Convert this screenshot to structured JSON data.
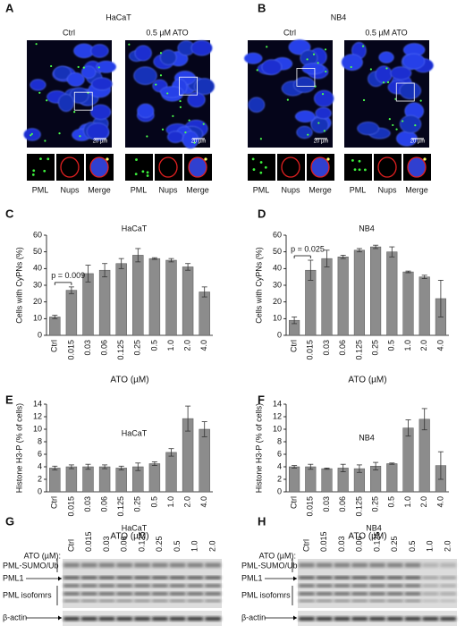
{
  "panels": [
    {
      "label": "A",
      "title": "HaCaT",
      "conditions": [
        "Ctrl",
        "0.5 µM ATO"
      ],
      "scale_bar": "20 µm",
      "insets": [
        "PML",
        "Nups",
        "Merge"
      ]
    },
    {
      "label": "B",
      "title": "NB4",
      "conditions": [
        "Ctrl",
        "0.5 µM ATO"
      ],
      "scale_bar": "20 µm",
      "insets": [
        "PML",
        "Nups",
        "Merge"
      ]
    }
  ],
  "chart_data": [
    {
      "type": "bar",
      "panel": "C",
      "title": "HaCaT",
      "ylabel": "Cells with CyPNs (%)",
      "xlabel": "ATO (µM)",
      "categories": [
        "Ctrl",
        "0.015",
        "0.03",
        "0.06",
        "0.125",
        "0.25",
        "0.5",
        "1.0",
        "2.0",
        "4.0"
      ],
      "values": [
        11,
        27,
        37,
        39,
        43,
        48,
        46,
        45,
        41,
        26
      ],
      "errors": [
        1,
        2,
        5,
        4,
        3,
        4,
        0.5,
        1,
        2,
        3
      ],
      "annotation": "p = 0.009",
      "color": "#8c8c8c",
      "ylim": [
        0,
        60
      ],
      "yticks": [
        0,
        10,
        20,
        30,
        40,
        50,
        60
      ]
    },
    {
      "type": "bar",
      "panel": "D",
      "title": "NB4",
      "ylabel": "Cells with CyPNs (%)",
      "xlabel": "ATO (µM)",
      "categories": [
        "Ctrl",
        "0.015",
        "0.03",
        "0.06",
        "0.125",
        "0.25",
        "0.5",
        "1.0",
        "2.0",
        "4.0"
      ],
      "values": [
        9,
        39,
        46,
        47,
        51,
        53,
        50,
        38,
        35,
        22
      ],
      "errors": [
        2,
        6,
        5,
        1,
        1,
        1,
        3,
        0.5,
        1,
        11
      ],
      "annotation": "p = 0.025",
      "color": "#8c8c8c",
      "ylim": [
        0,
        60
      ],
      "yticks": [
        0,
        10,
        20,
        30,
        40,
        50,
        60
      ]
    },
    {
      "type": "bar",
      "panel": "E",
      "title": "HaCaT",
      "ylabel": "Histone H3-P (% of cells)",
      "xlabel": "ATO (µM)",
      "categories": [
        "Ctrl",
        "0.015",
        "0.03",
        "0.06",
        "0.125",
        "0.25",
        "0.5",
        "1.0",
        "2.0",
        "4.0"
      ],
      "values": [
        3.8,
        4.0,
        4.0,
        4.0,
        3.8,
        4.0,
        4.5,
        6.3,
        11.7,
        10
      ],
      "errors": [
        0.3,
        0.3,
        0.4,
        0.3,
        0.3,
        0.6,
        0.3,
        0.6,
        2,
        1.2
      ],
      "color": "#8c8c8c",
      "ylim": [
        0,
        14
      ],
      "yticks": [
        0,
        2,
        4,
        6,
        8,
        10,
        12,
        14
      ]
    },
    {
      "type": "bar",
      "panel": "F",
      "title": "NB4",
      "ylabel": "Histone H3-P (% of cells)",
      "xlabel": "ATO (µM)",
      "categories": [
        "Ctrl",
        "0.015",
        "0.03",
        "0.06",
        "0.125",
        "0.25",
        "0.5",
        "1.0",
        "2.0",
        "4.0"
      ],
      "values": [
        4.0,
        4.0,
        3.7,
        3.8,
        3.7,
        4.1,
        4.5,
        10.2,
        11.6,
        4.2
      ],
      "errors": [
        0.2,
        0.4,
        0.1,
        0.6,
        0.6,
        0.6,
        0.1,
        1.3,
        1.7,
        2.2
      ],
      "color": "#8c8c8c",
      "ylim": [
        0,
        14
      ],
      "yticks": [
        0,
        2,
        4,
        6,
        8,
        10,
        12,
        14
      ]
    }
  ],
  "blots": [
    {
      "label": "G",
      "title": "HaCaT",
      "dose_label": "ATO (µM):",
      "doses": [
        "Ctrl",
        "0.015",
        "0.03",
        "0.06",
        "0.125",
        "0.25",
        "0.5",
        "1.0",
        "2.0"
      ],
      "bands": [
        "PML-SUMO/Ub",
        "PML1",
        "PML isofomrs"
      ],
      "loading": "β-actin"
    },
    {
      "label": "H",
      "title": "NB4",
      "dose_label": "ATO (µM):",
      "doses": [
        "Ctrl",
        "0.015",
        "0.03",
        "0.06",
        "0.125",
        "0.25",
        "0.5",
        "1.0",
        "2.0"
      ],
      "bands": [
        "PML-SUMO/Ub",
        "PML1",
        "PML isofomrs"
      ],
      "loading": "β-actin"
    }
  ]
}
